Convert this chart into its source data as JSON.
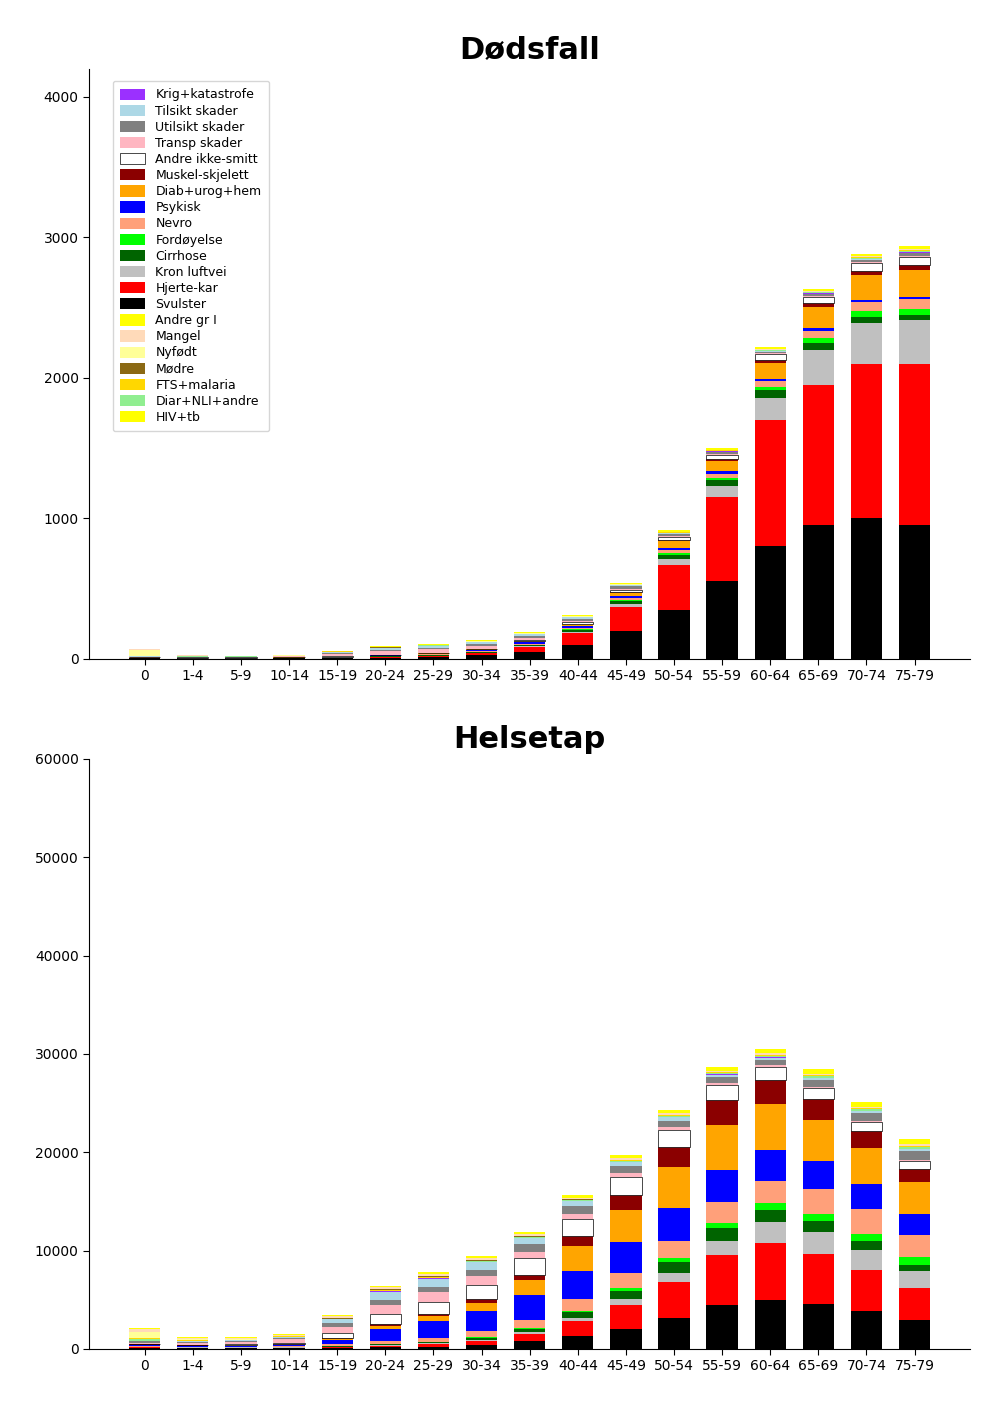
{
  "age_groups": [
    "0",
    "1-4",
    "5-9",
    "10-14",
    "15-19",
    "20-24",
    "25-29",
    "30-34",
    "35-39",
    "40-44",
    "45-49",
    "50-54",
    "55-59",
    "60-64",
    "65-69",
    "70-74",
    "75-79"
  ],
  "deaths": {
    "Svulster": [
      3,
      3,
      3,
      3,
      5,
      8,
      12,
      25,
      50,
      100,
      200,
      350,
      550,
      800,
      950,
      1000,
      950
    ],
    "Hjerte-kar": [
      3,
      1,
      1,
      1,
      3,
      5,
      8,
      15,
      35,
      80,
      170,
      320,
      600,
      900,
      1000,
      1100,
      1150
    ],
    "Kron luftvei": [
      1,
      1,
      1,
      1,
      1,
      2,
      3,
      4,
      6,
      12,
      20,
      40,
      80,
      160,
      250,
      290,
      310
    ],
    "Cirrhose": [
      0,
      0,
      0,
      0,
      1,
      2,
      3,
      4,
      7,
      12,
      20,
      32,
      42,
      50,
      50,
      45,
      38
    ],
    "Fordøyelse": [
      1,
      1,
      1,
      1,
      1,
      1,
      2,
      2,
      3,
      5,
      8,
      12,
      16,
      24,
      32,
      40,
      44
    ],
    "Nevro": [
      2,
      1,
      1,
      2,
      3,
      4,
      4,
      5,
      6,
      10,
      14,
      20,
      28,
      40,
      52,
      64,
      72
    ],
    "Psykisk": [
      0,
      0,
      0,
      0,
      1,
      3,
      5,
      7,
      9,
      11,
      14,
      16,
      18,
      20,
      20,
      18,
      14
    ],
    "Diab+urog+hem": [
      1,
      1,
      1,
      1,
      1,
      2,
      3,
      5,
      8,
      15,
      25,
      45,
      75,
      115,
      150,
      175,
      190
    ],
    "Muskel-skjelett": [
      0,
      0,
      0,
      0,
      0,
      1,
      1,
      1,
      2,
      4,
      6,
      10,
      15,
      20,
      26,
      31,
      34
    ],
    "Andre ikke-smitt": [
      1,
      1,
      1,
      1,
      1,
      2,
      3,
      4,
      6,
      10,
      14,
      20,
      28,
      40,
      48,
      56,
      60
    ],
    "Transp skader": [
      1,
      2,
      3,
      7,
      18,
      22,
      22,
      18,
      15,
      11,
      9,
      8,
      6,
      5,
      4,
      3,
      2
    ],
    "Utilsikt skader": [
      3,
      3,
      3,
      3,
      7,
      11,
      13,
      14,
      16,
      16,
      15,
      14,
      12,
      12,
      14,
      17,
      24
    ],
    "Tilsikt skader": [
      1,
      1,
      1,
      1,
      7,
      14,
      14,
      12,
      11,
      9,
      8,
      6,
      5,
      4,
      4,
      4,
      4
    ],
    "Krig+katastrofe": [
      0,
      0,
      0,
      0,
      1,
      1,
      1,
      1,
      1,
      1,
      1,
      1,
      1,
      1,
      1,
      1,
      1
    ],
    "Diar+NLI+andre": [
      4,
      2,
      1,
      1,
      1,
      1,
      1,
      2,
      2,
      2,
      3,
      4,
      5,
      6,
      8,
      10,
      12
    ],
    "FTS+malaria": [
      1,
      1,
      1,
      1,
      1,
      1,
      1,
      1,
      1,
      1,
      1,
      2,
      2,
      3,
      3,
      3,
      3
    ],
    "Mødre": [
      0,
      0,
      0,
      0,
      1,
      3,
      3,
      2,
      1,
      1,
      0,
      0,
      0,
      0,
      0,
      0,
      0
    ],
    "Nyfødt": [
      40,
      4,
      1,
      1,
      1,
      1,
      1,
      1,
      1,
      1,
      1,
      1,
      1,
      1,
      1,
      1,
      1
    ],
    "Mangel": [
      6,
      2,
      1,
      1,
      1,
      1,
      1,
      1,
      1,
      2,
      2,
      3,
      4,
      5,
      5,
      6,
      7
    ],
    "Andre gr I": [
      2,
      1,
      1,
      1,
      1,
      2,
      3,
      4,
      4,
      5,
      6,
      8,
      10,
      12,
      14,
      16,
      20
    ],
    "HIV+tb": [
      1,
      1,
      1,
      1,
      1,
      1,
      2,
      2,
      3,
      3,
      3,
      3,
      3,
      2,
      2,
      2,
      2
    ]
  },
  "helsetap": {
    "Svulster": [
      80,
      80,
      80,
      80,
      100,
      160,
      240,
      400,
      750,
      1300,
      2000,
      3100,
      4500,
      5000,
      4600,
      3800,
      2900
    ],
    "Hjerte-kar": [
      80,
      40,
      40,
      40,
      80,
      160,
      240,
      400,
      750,
      1500,
      2500,
      3700,
      5000,
      5800,
      5000,
      4200,
      3300
    ],
    "Kron luftvei": [
      40,
      25,
      25,
      25,
      40,
      65,
      80,
      120,
      200,
      330,
      580,
      900,
      1500,
      2100,
      2300,
      2100,
      1700
    ],
    "Cirrhose": [
      0,
      0,
      0,
      0,
      40,
      80,
      120,
      200,
      330,
      580,
      830,
      1100,
      1250,
      1250,
      1100,
      830,
      670
    ],
    "Fordøyelse": [
      40,
      25,
      16,
      16,
      25,
      40,
      56,
      80,
      120,
      180,
      290,
      410,
      540,
      670,
      750,
      790,
      750
    ],
    "Nevro": [
      80,
      65,
      65,
      80,
      160,
      290,
      410,
      580,
      830,
      1150,
      1500,
      1800,
      2100,
      2300,
      2500,
      2500,
      2300
    ],
    "Psykisk": [
      40,
      40,
      65,
      120,
      410,
      1250,
      1650,
      2100,
      2500,
      2900,
      3150,
      3300,
      3300,
      3150,
      2900,
      2500,
      2100
    ],
    "Diab+urog+hem": [
      80,
      65,
      65,
      80,
      160,
      330,
      500,
      830,
      1500,
      2500,
      3300,
      4150,
      4600,
      4600,
      4150,
      3750,
      3300
    ],
    "Muskel-skjelett": [
      25,
      16,
      16,
      25,
      65,
      120,
      200,
      330,
      580,
      1000,
      1500,
      2100,
      2500,
      2500,
      2100,
      1650,
      1250
    ],
    "Andre ikke-smitt": [
      80,
      80,
      120,
      160,
      500,
      1000,
      1250,
      1500,
      1650,
      1800,
      1800,
      1650,
      1500,
      1300,
      1150,
      1000,
      830
    ],
    "Transp skader": [
      80,
      120,
      160,
      330,
      670,
      1000,
      1000,
      830,
      670,
      500,
      410,
      330,
      250,
      160,
      120,
      100,
      80
    ],
    "Utilsikt skader": [
      160,
      160,
      160,
      160,
      330,
      500,
      580,
      670,
      750,
      750,
      710,
      670,
      580,
      580,
      670,
      750,
      910
    ],
    "Tilsikt skader": [
      40,
      40,
      40,
      80,
      410,
      830,
      830,
      750,
      620,
      500,
      410,
      330,
      250,
      200,
      200,
      200,
      200
    ],
    "Krig+katastrofe": [
      25,
      12,
      8,
      8,
      25,
      40,
      40,
      40,
      40,
      40,
      40,
      40,
      40,
      40,
      40,
      40,
      40
    ],
    "Diar+NLI+andre": [
      160,
      80,
      40,
      40,
      40,
      50,
      56,
      65,
      80,
      100,
      115,
      130,
      150,
      160,
      180,
      200,
      230
    ],
    "FTS+malaria": [
      80,
      50,
      25,
      16,
      16,
      25,
      25,
      33,
      33,
      40,
      40,
      50,
      50,
      56,
      56,
      56,
      56
    ],
    "Mødre": [
      0,
      0,
      0,
      0,
      80,
      160,
      160,
      120,
      80,
      40,
      16,
      8,
      4,
      2,
      1,
      0,
      0
    ],
    "Nyfødt": [
      650,
      80,
      40,
      25,
      16,
      16,
      16,
      16,
      16,
      16,
      16,
      16,
      16,
      16,
      16,
      16,
      16
    ],
    "Mangel": [
      250,
      160,
      120,
      120,
      160,
      160,
      160,
      160,
      160,
      160,
      160,
      160,
      160,
      160,
      160,
      160,
      160
    ],
    "Andre gr I": [
      120,
      80,
      65,
      65,
      80,
      100,
      120,
      160,
      200,
      250,
      290,
      330,
      370,
      410,
      460,
      500,
      540
    ],
    "HIV+tb": [
      40,
      25,
      16,
      16,
      25,
      40,
      50,
      56,
      56,
      56,
      50,
      40,
      33,
      25,
      16,
      16,
      16
    ]
  },
  "title1": "Dødsfall",
  "title2": "Helsetap"
}
